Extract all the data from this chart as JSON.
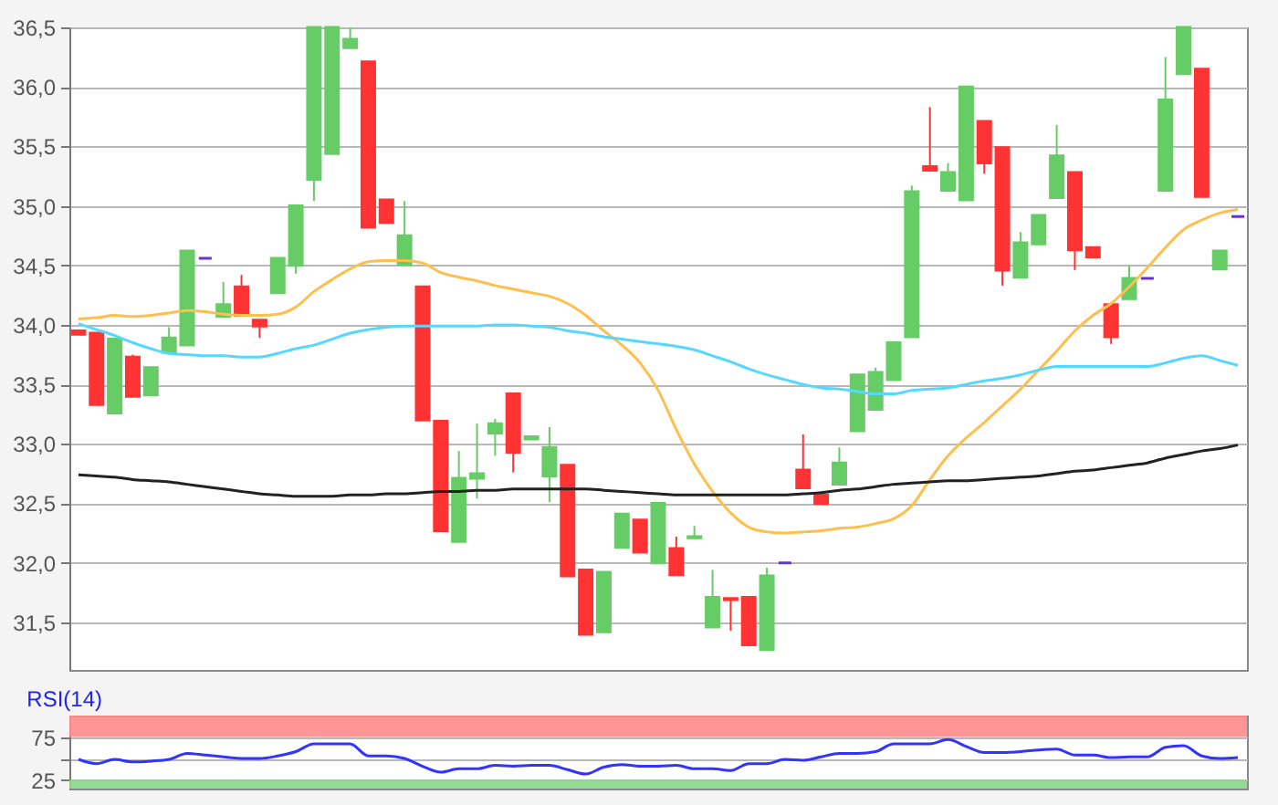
{
  "chart_data": [
    {
      "type": "candlestick",
      "categories": [
        null,
        null,
        null,
        null,
        null,
        null,
        null,
        null,
        null,
        null,
        null,
        null,
        null,
        null,
        null,
        null,
        null,
        null,
        null,
        null,
        null,
        null,
        null,
        null,
        null,
        null,
        null,
        null,
        null,
        null,
        null,
        null,
        null,
        null,
        null,
        null,
        null,
        null,
        null,
        null,
        null,
        null,
        null,
        null,
        null,
        null,
        null,
        null,
        null,
        null,
        null,
        null,
        null,
        null,
        null,
        null,
        null,
        null,
        null,
        null,
        null,
        null,
        null,
        null,
        null
      ],
      "ohlc": [
        [
          33.95,
          33.95,
          33.92,
          33.92
        ],
        [
          33.93,
          33.93,
          33.33,
          33.33
        ],
        [
          33.26,
          33.88,
          33.26,
          33.88
        ],
        [
          33.73,
          33.75,
          33.4,
          33.4
        ],
        [
          33.41,
          33.64,
          33.41,
          33.64
        ],
        [
          33.77,
          33.98,
          33.77,
          33.89
        ],
        [
          33.83,
          34.62,
          33.83,
          34.62
        ],
        [
          34.56,
          34.56,
          34.56,
          34.56
        ],
        [
          34.07,
          34.36,
          34.07,
          34.17
        ],
        [
          34.32,
          34.42,
          34.08,
          34.08
        ],
        [
          34.04,
          34.04,
          33.89,
          33.99
        ],
        [
          34.27,
          34.56,
          34.27,
          34.56
        ],
        [
          34.5,
          35.0,
          34.43,
          35.0
        ],
        [
          35.22,
          36.5,
          35.04,
          36.5
        ],
        [
          35.44,
          36.5,
          35.44,
          36.5
        ],
        [
          36.33,
          36.5,
          36.33,
          36.4
        ],
        [
          36.21,
          36.21,
          34.82,
          34.82
        ],
        [
          35.05,
          35.05,
          34.86,
          34.86
        ],
        [
          34.51,
          35.04,
          34.51,
          34.75
        ],
        [
          34.32,
          34.32,
          33.2,
          33.2
        ],
        [
          33.19,
          33.19,
          32.27,
          32.27
        ],
        [
          32.18,
          32.94,
          32.18,
          32.71
        ],
        [
          32.71,
          33.17,
          32.54,
          32.75
        ],
        [
          33.09,
          33.21,
          32.9,
          33.17
        ],
        [
          33.42,
          33.42,
          32.76,
          32.93
        ],
        [
          33.04,
          33.06,
          33.04,
          33.06
        ],
        [
          32.73,
          33.14,
          32.51,
          32.97
        ],
        [
          32.82,
          32.82,
          31.89,
          31.89
        ],
        [
          31.94,
          31.94,
          31.39,
          31.4
        ],
        [
          31.42,
          31.92,
          31.42,
          31.92
        ],
        [
          32.13,
          32.41,
          32.13,
          32.41
        ],
        [
          32.36,
          32.36,
          32.09,
          32.09
        ],
        [
          32.0,
          32.5,
          32.0,
          32.5
        ],
        [
          32.12,
          32.22,
          31.9,
          31.9
        ],
        [
          32.21,
          32.31,
          32.21,
          32.22
        ],
        [
          31.46,
          31.94,
          31.46,
          31.71
        ],
        [
          31.7,
          31.7,
          31.43,
          31.69
        ],
        [
          31.71,
          31.71,
          31.31,
          31.31
        ],
        [
          31.27,
          31.96,
          31.27,
          31.89
        ],
        [
          32.0,
          32.0,
          32.0,
          32.0
        ],
        [
          32.78,
          33.08,
          32.63,
          32.63
        ],
        [
          32.57,
          32.57,
          32.5,
          32.5
        ],
        [
          32.66,
          32.97,
          32.66,
          32.84
        ],
        [
          33.11,
          33.58,
          33.11,
          33.58
        ],
        [
          33.29,
          33.64,
          33.29,
          33.6
        ],
        [
          33.54,
          33.85,
          33.54,
          33.85
        ],
        [
          33.9,
          35.17,
          33.9,
          35.12
        ],
        [
          35.33,
          35.83,
          35.3,
          35.3
        ],
        [
          35.13,
          35.36,
          35.13,
          35.28
        ],
        [
          35.05,
          36.0,
          35.05,
          36.0
        ],
        [
          35.71,
          35.71,
          35.27,
          35.36
        ],
        [
          35.49,
          35.49,
          34.33,
          34.46
        ],
        [
          34.4,
          34.78,
          34.4,
          34.69
        ],
        [
          34.68,
          34.92,
          34.68,
          34.92
        ],
        [
          35.07,
          35.68,
          35.07,
          35.42
        ],
        [
          35.28,
          35.28,
          34.46,
          34.63
        ],
        [
          34.65,
          34.65,
          34.57,
          34.57
        ],
        [
          34.17,
          34.17,
          33.84,
          33.9
        ],
        [
          34.22,
          34.5,
          34.22,
          34.39
        ],
        [
          34.39,
          34.39,
          34.39,
          34.39
        ],
        [
          35.13,
          36.25,
          35.13,
          35.89
        ],
        [
          36.11,
          36.5,
          36.11,
          36.5
        ],
        [
          36.15,
          36.15,
          35.08,
          35.08
        ],
        [
          34.47,
          34.62,
          34.47,
          34.62
        ],
        [
          34.91,
          34.91,
          34.91,
          34.91
        ]
      ],
      "colors": [
        "#ff3333",
        "#ff3333",
        "#66cc66",
        "#ff3333",
        "#66cc66",
        "#66cc66",
        "#66cc66",
        "#6633cc",
        "#66cc66",
        "#ff3333",
        "#ff3333",
        "#66cc66",
        "#66cc66",
        "#66cc66",
        "#66cc66",
        "#66cc66",
        "#ff3333",
        "#ff3333",
        "#66cc66",
        "#ff3333",
        "#ff3333",
        "#66cc66",
        "#66cc66",
        "#66cc66",
        "#ff3333",
        "#66cc66",
        "#66cc66",
        "#ff3333",
        "#ff3333",
        "#66cc66",
        "#66cc66",
        "#ff3333",
        "#66cc66",
        "#ff3333",
        "#66cc66",
        "#66cc66",
        "#ff3333",
        "#ff3333",
        "#66cc66",
        "#6633cc",
        "#ff3333",
        "#ff3333",
        "#66cc66",
        "#66cc66",
        "#66cc66",
        "#66cc66",
        "#66cc66",
        "#ff3333",
        "#66cc66",
        "#66cc66",
        "#ff3333",
        "#ff3333",
        "#66cc66",
        "#66cc66",
        "#66cc66",
        "#ff3333",
        "#ff3333",
        "#ff3333",
        "#66cc66",
        "#6633cc",
        "#66cc66",
        "#66cc66",
        "#ff3333",
        "#66cc66",
        "#6633cc"
      ],
      "series": [
        {
          "type": "line",
          "color": "#ffbf4d",
          "values": [
            34.05,
            34.06,
            34.08,
            34.07,
            34.08,
            34.1,
            34.12,
            34.11,
            34.09,
            34.08,
            34.08,
            34.09,
            34.15,
            34.28,
            34.38,
            34.47,
            34.53,
            34.54,
            34.54,
            34.52,
            34.44,
            34.4,
            34.37,
            34.33,
            34.3,
            34.27,
            34.24,
            34.18,
            34.08,
            33.95,
            33.83,
            33.68,
            33.45,
            33.12,
            32.83,
            32.6,
            32.42,
            32.3,
            32.26,
            32.25,
            32.26,
            32.27,
            32.29,
            32.3,
            32.33,
            32.37,
            32.48,
            32.7,
            32.9,
            33.05,
            33.18,
            33.32,
            33.46,
            33.62,
            33.78,
            33.95,
            34.08,
            34.18,
            34.32,
            34.48,
            34.65,
            34.8,
            34.88,
            34.94,
            34.97
          ]
        },
        {
          "type": "line",
          "color": "#55d8ff",
          "values": [
            34.01,
            33.96,
            33.91,
            33.85,
            33.8,
            33.76,
            33.75,
            33.74,
            33.74,
            33.73,
            33.73,
            33.76,
            33.8,
            33.83,
            33.88,
            33.93,
            33.96,
            33.98,
            33.99,
            33.99,
            33.99,
            33.99,
            33.99,
            34.0,
            34.0,
            33.99,
            33.98,
            33.95,
            33.93,
            33.9,
            33.88,
            33.86,
            33.84,
            33.82,
            33.79,
            33.74,
            33.69,
            33.63,
            33.58,
            33.54,
            33.5,
            33.47,
            33.46,
            33.44,
            33.42,
            33.42,
            33.45,
            33.46,
            33.47,
            33.5,
            33.53,
            33.55,
            33.58,
            33.62,
            33.65,
            33.65,
            33.65,
            33.65,
            33.65,
            33.65,
            33.68,
            33.72,
            33.74,
            33.7,
            33.66
          ]
        },
        {
          "type": "line",
          "color": "#222222",
          "values": [
            32.74,
            32.73,
            32.72,
            32.7,
            32.69,
            32.68,
            32.66,
            32.64,
            32.62,
            32.6,
            32.58,
            32.57,
            32.56,
            32.56,
            32.56,
            32.57,
            32.57,
            32.58,
            32.58,
            32.59,
            32.6,
            32.6,
            32.61,
            32.61,
            32.62,
            32.62,
            32.62,
            32.62,
            32.62,
            32.61,
            32.6,
            32.59,
            32.58,
            32.57,
            32.57,
            32.57,
            32.57,
            32.57,
            32.57,
            32.57,
            32.58,
            32.59,
            32.61,
            32.62,
            32.64,
            32.66,
            32.67,
            32.68,
            32.69,
            32.69,
            32.7,
            32.71,
            32.72,
            32.73,
            32.75,
            32.77,
            32.78,
            32.8,
            32.82,
            32.84,
            32.88,
            32.91,
            32.94,
            32.96,
            32.99
          ]
        }
      ],
      "ylim": [
        31.1,
        36.5
      ],
      "yticks": [
        {
          "value": 31.5,
          "label": "31,5"
        },
        {
          "value": 32,
          "label": "32,0"
        },
        {
          "value": 32.5,
          "label": "32,5"
        },
        {
          "value": 33,
          "label": "33,0"
        },
        {
          "value": 33.5,
          "label": "33,5"
        },
        {
          "value": 34,
          "label": "34,0"
        },
        {
          "value": 34.5,
          "label": "34,5"
        },
        {
          "value": 35,
          "label": "35,0"
        },
        {
          "value": 35.5,
          "label": "35,5"
        },
        {
          "value": 36,
          "label": "36,0"
        },
        {
          "value": 36.5,
          "label": "36,5"
        }
      ],
      "grid": "y"
    },
    {
      "type": "line",
      "title": "RSI(14)",
      "categories": [
        null,
        null,
        null,
        null,
        null,
        null,
        null,
        null,
        null,
        null,
        null,
        null,
        null,
        null,
        null,
        null,
        null,
        null,
        null,
        null,
        null,
        null,
        null,
        null,
        null,
        null,
        null,
        null,
        null,
        null,
        null,
        null,
        null,
        null,
        null,
        null,
        null,
        null,
        null,
        null,
        null,
        null,
        null,
        null,
        null,
        null,
        null,
        null,
        null,
        null,
        null,
        null,
        null,
        null,
        null,
        null,
        null,
        null,
        null,
        null,
        null,
        null,
        null,
        null,
        null
      ],
      "series": [
        {
          "color": "#3333ff",
          "values": [
            49,
            44,
            49,
            46,
            47,
            49,
            56,
            54,
            52,
            50,
            50,
            53,
            58,
            67,
            67,
            67,
            53,
            53,
            50,
            41,
            34,
            38,
            38,
            42,
            41,
            42,
            42,
            37,
            32,
            40,
            43,
            41,
            41,
            42,
            38,
            38,
            36,
            44,
            44,
            49,
            48,
            52,
            56,
            56,
            58,
            67,
            67,
            67,
            72,
            64,
            57,
            57,
            58,
            60,
            61,
            54,
            54,
            51,
            52,
            52,
            63,
            65,
            53,
            50,
            51
          ]
        }
      ],
      "ylim": [
        15,
        100
      ],
      "yticks": [
        25,
        {
          "value": 50,
          "label": null
        },
        75
      ],
      "bands": [
        {
          "axis": "y",
          "from": 75,
          "to": 100,
          "color": "#ff8a8a"
        },
        {
          "axis": "y",
          "from": 15,
          "to": 25,
          "color": "#88d888"
        }
      ],
      "grid": "y"
    }
  ]
}
